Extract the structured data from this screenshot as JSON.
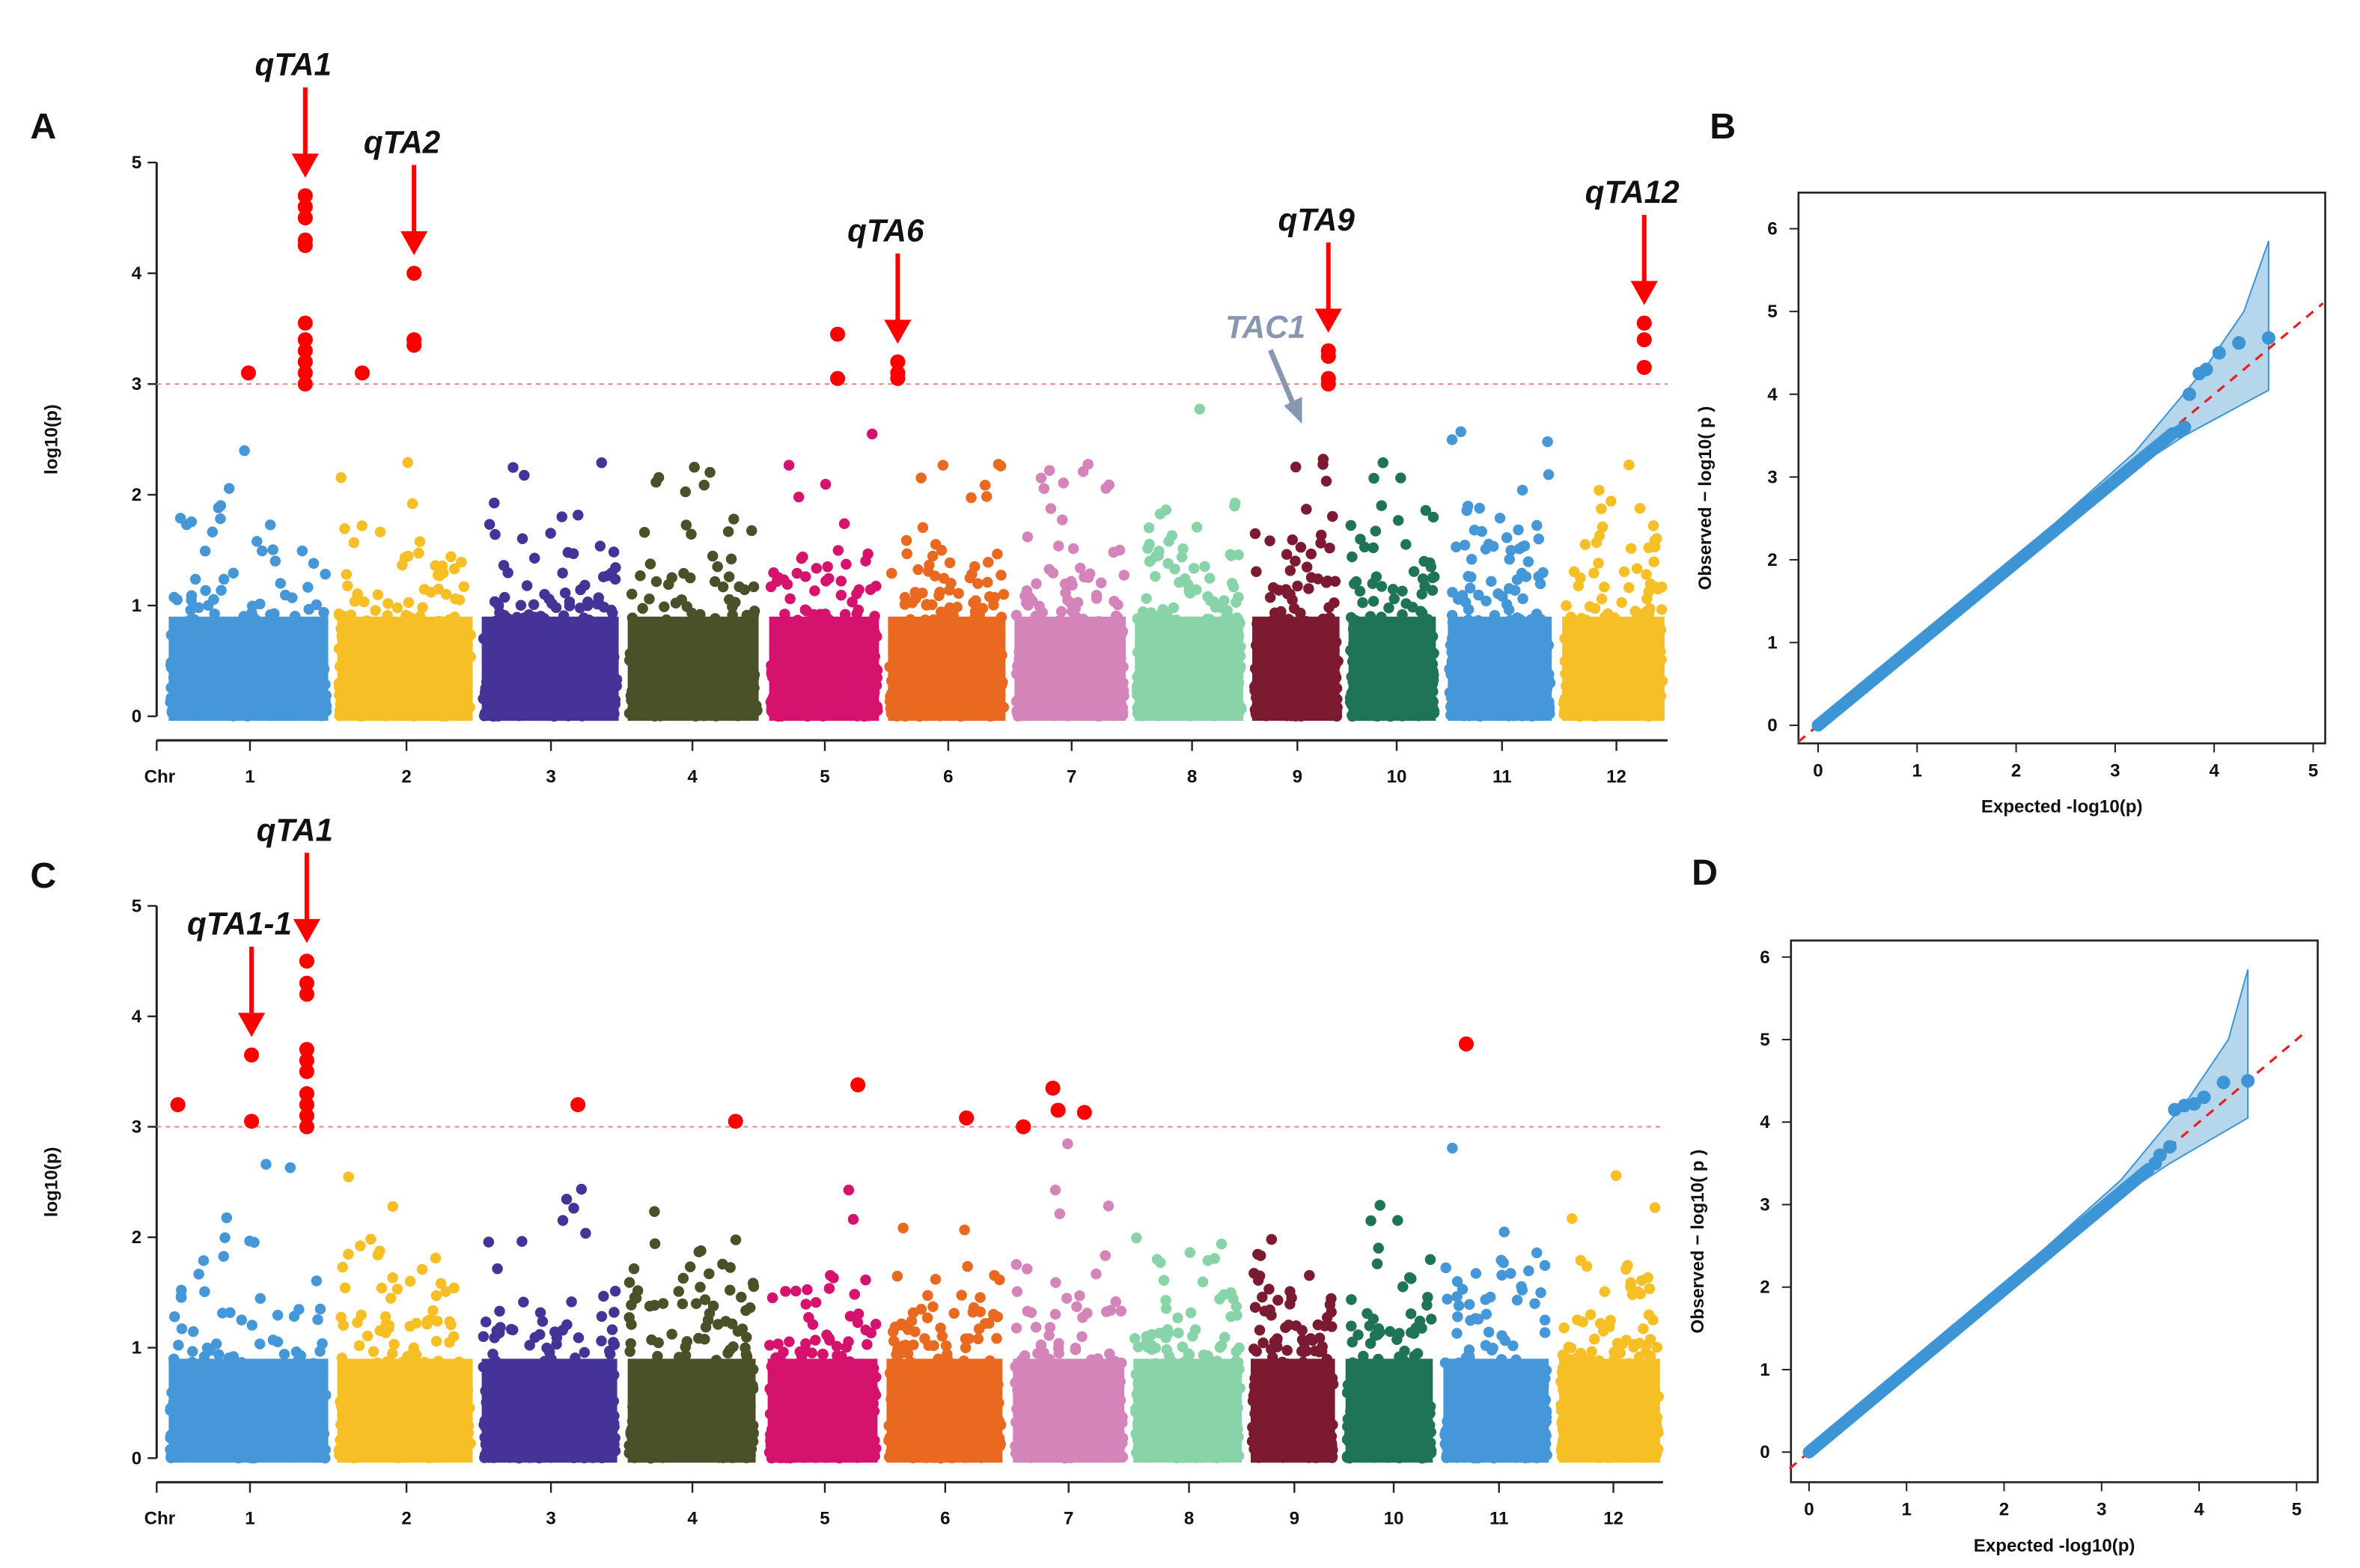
{
  "chart_data": [
    {
      "panel": "A",
      "type": "scatter",
      "subtype": "manhattan",
      "ylabel": "log10(p)",
      "xlabel": "Chr",
      "ylim": [
        0,
        5
      ],
      "yticks": [
        0,
        1,
        2,
        3,
        4,
        5
      ],
      "threshold": 3,
      "chromosomes": [
        "1",
        "2",
        "3",
        "4",
        "5",
        "6",
        "7",
        "8",
        "9",
        "10",
        "11",
        "12"
      ],
      "significant_points": [
        {
          "chr": "1",
          "pos": 0.5,
          "y": 3.1
        },
        {
          "chr": "1",
          "pos": 0.87,
          "y": 4.7
        },
        {
          "chr": "1",
          "pos": 0.87,
          "y": 4.6
        },
        {
          "chr": "1",
          "pos": 0.87,
          "y": 4.5
        },
        {
          "chr": "1",
          "pos": 0.87,
          "y": 4.3
        },
        {
          "chr": "1",
          "pos": 0.87,
          "y": 4.25
        },
        {
          "chr": "1",
          "pos": 0.87,
          "y": 3.55
        },
        {
          "chr": "1",
          "pos": 0.87,
          "y": 3.4
        },
        {
          "chr": "1",
          "pos": 0.87,
          "y": 3.3
        },
        {
          "chr": "1",
          "pos": 0.87,
          "y": 3.2
        },
        {
          "chr": "1",
          "pos": 0.87,
          "y": 3.1
        },
        {
          "chr": "1",
          "pos": 0.87,
          "y": 3.0
        },
        {
          "chr": "2",
          "pos": 0.17,
          "y": 3.1
        },
        {
          "chr": "2",
          "pos": 0.57,
          "y": 4.0
        },
        {
          "chr": "2",
          "pos": 0.57,
          "y": 3.4
        },
        {
          "chr": "2",
          "pos": 0.57,
          "y": 3.35
        },
        {
          "chr": "5",
          "pos": 0.63,
          "y": 3.45
        },
        {
          "chr": "5",
          "pos": 0.63,
          "y": 3.05
        },
        {
          "chr": "6",
          "pos": 0.06,
          "y": 3.2
        },
        {
          "chr": "6",
          "pos": 0.06,
          "y": 3.1
        },
        {
          "chr": "6",
          "pos": 0.06,
          "y": 3.05
        },
        {
          "chr": "9",
          "pos": 0.9,
          "y": 3.3
        },
        {
          "chr": "9",
          "pos": 0.9,
          "y": 3.25
        },
        {
          "chr": "9",
          "pos": 0.9,
          "y": 3.05
        },
        {
          "chr": "9",
          "pos": 0.9,
          "y": 3.0
        },
        {
          "chr": "12",
          "pos": 0.82,
          "y": 3.55
        },
        {
          "chr": "12",
          "pos": 0.82,
          "y": 3.4
        },
        {
          "chr": "12",
          "pos": 0.82,
          "y": 3.15
        }
      ],
      "annotations": [
        {
          "label": "qTA1",
          "chr": "1",
          "pos": 0.87,
          "color": "#ff0000"
        },
        {
          "label": "qTA2",
          "chr": "2",
          "pos": 0.57,
          "color": "#ff0000"
        },
        {
          "label": "qTA6",
          "chr": "6",
          "pos": 0.06,
          "color": "#ff0000"
        },
        {
          "label": "qTA9",
          "chr": "9",
          "pos": 0.9,
          "color": "#ff0000"
        },
        {
          "label": "qTA12",
          "chr": "12",
          "pos": 0.82,
          "color": "#ff0000"
        },
        {
          "label": "TAC1",
          "chr": "9",
          "pos": 0.52,
          "y": 2.6,
          "color": "#8797b0"
        }
      ]
    },
    {
      "panel": "B",
      "type": "scatter",
      "subtype": "qq",
      "xlabel": "Expected -log10(p)",
      "ylabel": "Observed  − log10( p )",
      "xlim": [
        0,
        5
      ],
      "ylim": [
        0,
        6
      ],
      "xticks": [
        0,
        1,
        2,
        3,
        4,
        5
      ],
      "yticks": [
        0,
        1,
        2,
        3,
        4,
        5,
        6
      ],
      "diagonal_max": 3.6,
      "tail_points": [
        [
          3.65,
          3.55
        ],
        [
          3.7,
          3.6
        ],
        [
          3.75,
          4.0
        ],
        [
          3.85,
          4.25
        ],
        [
          3.92,
          4.3
        ],
        [
          4.05,
          4.5
        ],
        [
          4.25,
          4.62
        ],
        [
          4.55,
          4.68
        ]
      ],
      "band_upper_end": 5.85,
      "band_lower_end": 4.05,
      "band_x_end": 4.55
    },
    {
      "panel": "C",
      "type": "scatter",
      "subtype": "manhattan",
      "ylabel": "log10(p)",
      "xlabel": "Chr",
      "ylim": [
        0,
        5
      ],
      "yticks": [
        0,
        1,
        2,
        3,
        4,
        5
      ],
      "threshold": 3,
      "chromosomes": [
        "1",
        "2",
        "3",
        "4",
        "5",
        "6",
        "7",
        "8",
        "9",
        "10",
        "11",
        "12"
      ],
      "significant_points": [
        {
          "chr": "1",
          "pos": 0.04,
          "y": 3.2
        },
        {
          "chr": "1",
          "pos": 0.52,
          "y": 3.65
        },
        {
          "chr": "1",
          "pos": 0.52,
          "y": 3.05
        },
        {
          "chr": "1",
          "pos": 0.88,
          "y": 4.5
        },
        {
          "chr": "1",
          "pos": 0.88,
          "y": 4.3
        },
        {
          "chr": "1",
          "pos": 0.88,
          "y": 4.2
        },
        {
          "chr": "1",
          "pos": 0.88,
          "y": 3.7
        },
        {
          "chr": "1",
          "pos": 0.88,
          "y": 3.6
        },
        {
          "chr": "1",
          "pos": 0.88,
          "y": 3.5
        },
        {
          "chr": "1",
          "pos": 0.88,
          "y": 3.3
        },
        {
          "chr": "1",
          "pos": 0.88,
          "y": 3.2
        },
        {
          "chr": "1",
          "pos": 0.88,
          "y": 3.1
        },
        {
          "chr": "1",
          "pos": 0.88,
          "y": 3.0
        },
        {
          "chr": "3",
          "pos": 0.72,
          "y": 3.2
        },
        {
          "chr": "4",
          "pos": 0.86,
          "y": 3.05
        },
        {
          "chr": "5",
          "pos": 0.84,
          "y": 3.38
        },
        {
          "chr": "6",
          "pos": 0.7,
          "y": 3.08
        },
        {
          "chr": "7",
          "pos": 0.07,
          "y": 3.0
        },
        {
          "chr": "7",
          "pos": 0.35,
          "y": 3.35
        },
        {
          "chr": "7",
          "pos": 0.4,
          "y": 3.15
        },
        {
          "chr": "7",
          "pos": 0.65,
          "y": 3.13
        },
        {
          "chr": "11",
          "pos": 0.2,
          "y": 3.75
        }
      ],
      "annotations": [
        {
          "label": "qTA1",
          "chr": "1",
          "pos": 0.88,
          "color": "#ff0000"
        },
        {
          "label": "qTA1-1",
          "chr": "1",
          "pos": 0.52,
          "color": "#ff0000"
        }
      ]
    },
    {
      "panel": "D",
      "type": "scatter",
      "subtype": "qq",
      "xlabel": "Expected -log10(p)",
      "ylabel": "Observed  − log10( p )",
      "xlim": [
        0,
        5
      ],
      "ylim": [
        0,
        6
      ],
      "xticks": [
        0,
        1,
        2,
        3,
        4,
        5
      ],
      "yticks": [
        0,
        1,
        2,
        3,
        4,
        5,
        6
      ],
      "diagonal_max": 3.5,
      "tail_points": [
        [
          3.55,
          3.5
        ],
        [
          3.6,
          3.6
        ],
        [
          3.7,
          3.7
        ],
        [
          3.75,
          4.15
        ],
        [
          3.85,
          4.2
        ],
        [
          3.95,
          4.22
        ],
        [
          4.05,
          4.3
        ],
        [
          4.25,
          4.48
        ],
        [
          4.5,
          4.5
        ]
      ],
      "band_upper_end": 5.85,
      "band_lower_end": 4.05,
      "band_x_end": 4.5
    }
  ],
  "panel_labels": [
    "A",
    "B",
    "C",
    "D"
  ],
  "colors": {
    "chromosomes": [
      "#4597d8",
      "#f5bf25",
      "#463397",
      "#4a5128",
      "#d6126f",
      "#e8691f",
      "#d484b8",
      "#88d4a8",
      "#7b1a30",
      "#1f7356",
      "#4597d8",
      "#f5bf25"
    ],
    "significant": "#ff0000",
    "qq_points": "#3d95d6",
    "qq_band": "#a9cfe9",
    "threshold_line": "#f08080"
  }
}
